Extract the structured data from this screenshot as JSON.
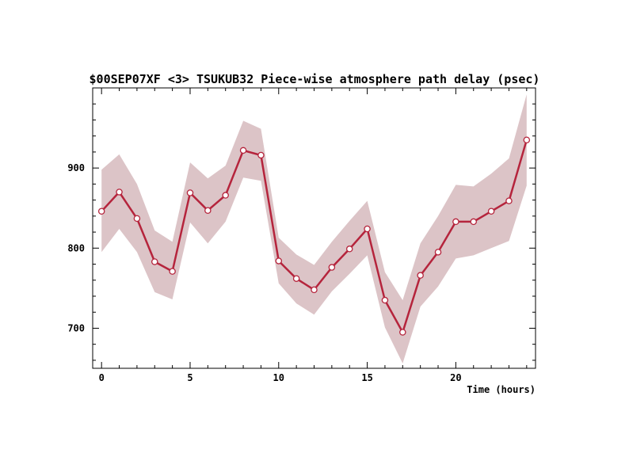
{
  "chart_data": {
    "type": "line",
    "title": "$00SEP07XF <3>  TSUKUB32  Piece-wise atmosphere path delay (psec)",
    "xlabel": "Time (hours)",
    "ylabel": "",
    "xlim": [
      -0.5,
      24.5
    ],
    "ylim": [
      650,
      1000
    ],
    "x_ticks": [
      0,
      5,
      10,
      15,
      20
    ],
    "y_ticks": [
      700,
      800,
      900
    ],
    "grid": false,
    "legend": "none",
    "line_color": "#b5243c",
    "band_color": "#dcc4c7",
    "series": [
      {
        "x": [
          0,
          1,
          2,
          3,
          4,
          5,
          6,
          7,
          8,
          9,
          10,
          11,
          12,
          13,
          14,
          15,
          16,
          17,
          18,
          19,
          20,
          21,
          22,
          23,
          24
        ],
        "values": [
          846,
          870,
          837,
          783,
          771,
          869,
          847,
          866,
          922,
          916,
          784,
          762,
          748,
          776,
          799,
          824,
          735,
          695,
          766,
          795,
          833,
          833,
          846,
          859,
          935
        ],
        "upper": [
          898,
          917,
          880,
          822,
          808,
          907,
          887,
          903,
          959,
          949,
          813,
          792,
          779,
          808,
          834,
          859,
          770,
          735,
          806,
          840,
          879,
          877,
          893,
          912,
          992
        ],
        "lower": [
          795,
          824,
          795,
          745,
          736,
          832,
          806,
          833,
          888,
          884,
          756,
          731,
          717,
          746,
          768,
          791,
          701,
          656,
          727,
          752,
          787,
          791,
          800,
          809,
          878
        ]
      }
    ]
  }
}
